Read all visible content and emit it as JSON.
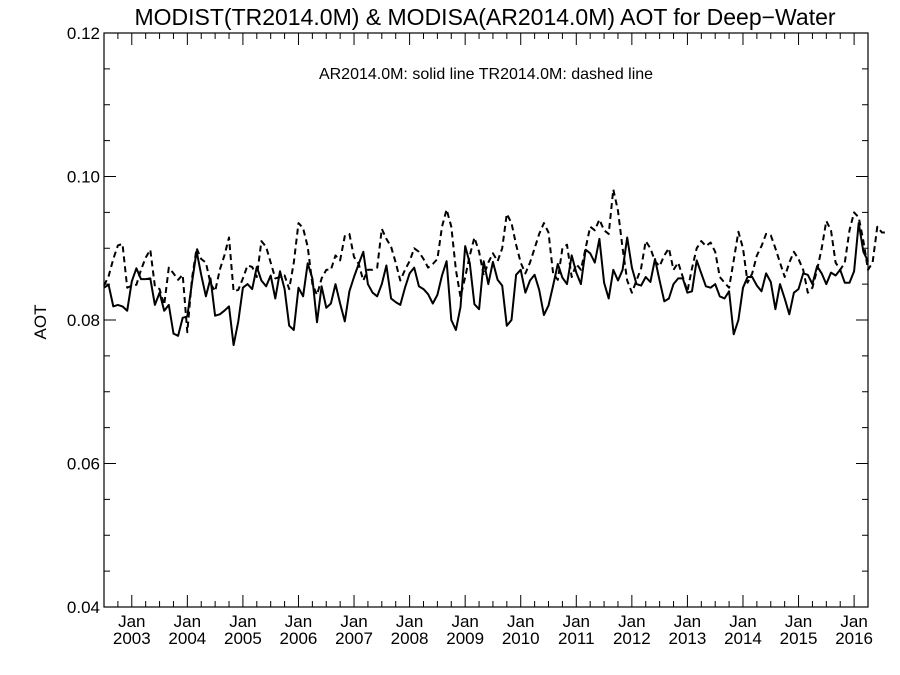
{
  "chart_data": {
    "type": "line",
    "title": "MODIST(TR2014.0M) & MODISA(AR2014.0M)  AOT for Deep−Water",
    "ylabel": "AOT",
    "xlabel": "",
    "annotation": "AR2014.0M: solid line   TR2014.0M: dashed line",
    "ylim": [
      0.04,
      0.12
    ],
    "xlim": [
      "2002-07",
      "2016-04"
    ],
    "y_ticks": [
      "0.04",
      "0.06",
      "0.08",
      "0.10",
      "0.12"
    ],
    "x_tick_month": "Jan",
    "x_tick_years": [
      "2003",
      "2004",
      "2005",
      "2006",
      "2007",
      "2008",
      "2009",
      "2010",
      "2011",
      "2012",
      "2013",
      "2014",
      "2015",
      "2016"
    ],
    "series": [
      {
        "style": "solid",
        "color": "#000000",
        "start": "2002-07",
        "values": [
          0.0845,
          0.0849,
          0.0819,
          0.0821,
          0.0819,
          0.0813,
          0.0854,
          0.0872,
          0.0857,
          0.0857,
          0.0858,
          0.0821,
          0.0838,
          0.0813,
          0.0821,
          0.0781,
          0.0778,
          0.0803,
          0.0805,
          0.0852,
          0.0896,
          0.0863,
          0.0833,
          0.0858,
          0.0806,
          0.0808,
          0.0813,
          0.0819,
          0.0765,
          0.0798,
          0.0845,
          0.085,
          0.0843,
          0.0874,
          0.0855,
          0.0847,
          0.0862,
          0.083,
          0.0868,
          0.0843,
          0.0792,
          0.0786,
          0.0845,
          0.0833,
          0.0879,
          0.0858,
          0.0797,
          0.0847,
          0.0817,
          0.0823,
          0.085,
          0.0823,
          0.0798,
          0.084,
          0.086,
          0.0878,
          0.0895,
          0.085,
          0.0838,
          0.0833,
          0.085,
          0.0876,
          0.083,
          0.0825,
          0.0821,
          0.0845,
          0.0865,
          0.0873,
          0.0847,
          0.0843,
          0.0836,
          0.0823,
          0.0835,
          0.0862,
          0.0882,
          0.08,
          0.0786,
          0.0818,
          0.0903,
          0.0879,
          0.0822,
          0.0815,
          0.0882,
          0.085,
          0.0881,
          0.0856,
          0.0848,
          0.0792,
          0.08,
          0.0863,
          0.087,
          0.0838,
          0.0855,
          0.0863,
          0.0842,
          0.0807,
          0.082,
          0.0848,
          0.0878,
          0.0859,
          0.085,
          0.089,
          0.0866,
          0.085,
          0.0898,
          0.0893,
          0.088,
          0.0913,
          0.0852,
          0.083,
          0.087,
          0.0855,
          0.087,
          0.0915,
          0.0873,
          0.085,
          0.0848,
          0.086,
          0.0853,
          0.0885,
          0.0855,
          0.0826,
          0.083,
          0.085,
          0.0858,
          0.0858,
          0.0838,
          0.084,
          0.0883,
          0.0865,
          0.0847,
          0.0845,
          0.085,
          0.0833,
          0.083,
          0.084,
          0.078,
          0.08,
          0.0845,
          0.086,
          0.086,
          0.0848,
          0.084,
          0.0865,
          0.0853,
          0.0815,
          0.085,
          0.083,
          0.0808,
          0.0838,
          0.0843,
          0.0865,
          0.0863,
          0.085,
          0.0875,
          0.0865,
          0.085,
          0.0866,
          0.0862,
          0.087,
          0.0852,
          0.0852,
          0.0868,
          0.0935,
          0.0895,
          0.0882
        ]
      },
      {
        "style": "dashed",
        "color": "#000000",
        "start": "2002-07",
        "values": [
          0.0848,
          0.0861,
          0.0885,
          0.0904,
          0.0906,
          0.0845,
          0.0848,
          0.0849,
          0.087,
          0.0887,
          0.0898,
          0.0847,
          0.0843,
          0.0821,
          0.0873,
          0.0865,
          0.0856,
          0.0863,
          0.0783,
          0.0858,
          0.09,
          0.0885,
          0.088,
          0.0851,
          0.084,
          0.087,
          0.089,
          0.0915,
          0.084,
          0.0842,
          0.0858,
          0.0876,
          0.0874,
          0.086,
          0.091,
          0.0902,
          0.088,
          0.0858,
          0.086,
          0.0862,
          0.0843,
          0.088,
          0.0935,
          0.0928,
          0.0902,
          0.085,
          0.0835,
          0.0858,
          0.087,
          0.087,
          0.089,
          0.0883,
          0.0917,
          0.092,
          0.0888,
          0.0878,
          0.0855,
          0.087,
          0.087,
          0.0873,
          0.0927,
          0.0913,
          0.0902,
          0.088,
          0.0855,
          0.087,
          0.0882,
          0.09,
          0.0895,
          0.0885,
          0.0873,
          0.0878,
          0.0885,
          0.093,
          0.0954,
          0.093,
          0.087,
          0.0832,
          0.086,
          0.089,
          0.0915,
          0.0895,
          0.0862,
          0.088,
          0.0893,
          0.0882,
          0.09,
          0.0948,
          0.0935,
          0.0905,
          0.088,
          0.0865,
          0.088,
          0.09,
          0.092,
          0.0935,
          0.0922,
          0.0865,
          0.0856,
          0.09,
          0.0905,
          0.086,
          0.0878,
          0.087,
          0.09,
          0.093,
          0.0925,
          0.094,
          0.0925,
          0.092,
          0.0982,
          0.0952,
          0.09,
          0.0855,
          0.0838,
          0.0855,
          0.0872,
          0.091,
          0.09,
          0.0882,
          0.0875,
          0.089,
          0.09,
          0.087,
          0.088,
          0.086,
          0.084,
          0.0872,
          0.09,
          0.091,
          0.0903,
          0.0908,
          0.0895,
          0.086,
          0.0852,
          0.0845,
          0.0883,
          0.0923,
          0.09,
          0.0852,
          0.0865,
          0.089,
          0.0903,
          0.092,
          0.0918,
          0.09,
          0.088,
          0.086,
          0.088,
          0.0895,
          0.0885,
          0.087,
          0.0838,
          0.0845,
          0.087,
          0.09,
          0.0938,
          0.0925,
          0.088,
          0.087,
          0.088,
          0.0925,
          0.095,
          0.0943,
          0.091,
          0.087,
          0.088,
          0.093,
          0.0922,
          0.0922
        ]
      }
    ]
  }
}
